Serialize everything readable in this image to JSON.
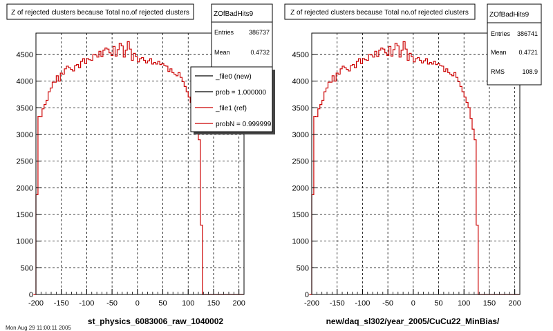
{
  "colors": {
    "reference_line": "#cc0000",
    "new_line": "#000000",
    "grid": "#000000",
    "background": "#ffffff"
  },
  "footer_text": "Mon Aug 29 11:00:11 2005",
  "chart_data": [
    {
      "type": "line",
      "title": "Z of rejected clusters  because Total no.of rejected clusters",
      "xlabel": "st_physics_6083006_raw_1040002",
      "ylabel": "",
      "xlim": [
        -200,
        210
      ],
      "ylim": [
        0,
        4900
      ],
      "xticks": [
        -200,
        -150,
        -100,
        -50,
        0,
        50,
        100,
        150,
        200
      ],
      "xtick_labels": [
        "-200",
        "-150",
        "-100",
        "-50",
        "0",
        "50",
        "100",
        "150",
        "200"
      ],
      "yticks": [
        0,
        500,
        1000,
        1500,
        2000,
        2500,
        3000,
        3500,
        4000,
        4500
      ],
      "ytick_labels": [
        "0",
        "500",
        "1000",
        "1500",
        "2000",
        "2500",
        "3000",
        "3500",
        "4000",
        "4500"
      ],
      "grid": true,
      "stats": {
        "name": "ZOfBadHits9",
        "rows": [
          {
            "label": "Entries",
            "value": "386737"
          },
          {
            "label": "Mean",
            "value": "0.4732"
          }
        ]
      },
      "legend": {
        "placement": "top-right",
        "entries": [
          {
            "label": "_file0 (new)",
            "color": "#000000"
          },
          {
            "label": "prob = 1.000000",
            "color": "#000000"
          },
          {
            "label": "_file1 (ref)",
            "color": "#cc0000"
          },
          {
            "label": "probN = 0.999999",
            "color": "#cc0000"
          }
        ]
      },
      "series": [
        {
          "x": [
            -205,
            -200,
            -196,
            -192,
            -188,
            -184,
            -180,
            -176,
            -172,
            -168,
            -164,
            -160,
            -156,
            -152,
            -148,
            -144,
            -140,
            -136,
            -132,
            -128,
            -124,
            -120,
            -116,
            -112,
            -108,
            -104,
            -100,
            -96,
            -92,
            -88,
            -84,
            -80,
            -76,
            -72,
            -68,
            -64,
            -60,
            -56,
            -52,
            -48,
            -44,
            -40,
            -36,
            -32,
            -28,
            -24,
            -20,
            -16,
            -12,
            -8,
            -4,
            0,
            4,
            8,
            12,
            16,
            20,
            24,
            28,
            32,
            36,
            40,
            44,
            48,
            52,
            56,
            60,
            64,
            68,
            72,
            76,
            80,
            84,
            88,
            92,
            96,
            100,
            104,
            108,
            112,
            116,
            120,
            124,
            128,
            132,
            136,
            140,
            144,
            148,
            152,
            156,
            160,
            164,
            168,
            172,
            176,
            180,
            184,
            188,
            192,
            196,
            200,
            204
          ],
          "values": [
            0,
            1870,
            3340,
            3330,
            3480,
            3560,
            3640,
            3800,
            3870,
            3980,
            3980,
            4100,
            4000,
            4150,
            4130,
            4230,
            4280,
            4250,
            4220,
            4190,
            4290,
            4310,
            4250,
            4370,
            4420,
            4330,
            4420,
            4400,
            4390,
            4500,
            4490,
            4450,
            4560,
            4460,
            4580,
            4620,
            4600,
            4530,
            4480,
            4650,
            4470,
            4590,
            4710,
            4660,
            4450,
            4580,
            4740,
            4600,
            4390,
            4520,
            4460,
            4360,
            4420,
            4440,
            4390,
            4340,
            4380,
            4420,
            4320,
            4350,
            4320,
            4370,
            4310,
            4330,
            4290,
            4280,
            4180,
            4230,
            4160,
            4130,
            4100,
            4160,
            4070,
            3990,
            3900,
            3800,
            3700,
            3600,
            3500,
            3300,
            3100,
            2900,
            1300,
            0,
            0,
            0,
            0,
            0,
            0,
            0,
            0,
            0,
            0,
            0,
            0,
            0,
            0,
            0,
            0,
            0,
            0,
            0,
            0
          ]
        }
      ]
    },
    {
      "type": "line",
      "title": "Z of rejected clusters  because Total no.of rejected clusters",
      "xlabel": "new/daq_sl302/year_2005/CuCu22_MinBias/",
      "ylabel": "",
      "xlim": [
        -200,
        210
      ],
      "ylim": [
        0,
        4900
      ],
      "xticks": [
        -200,
        -150,
        -100,
        -50,
        0,
        50,
        100,
        150,
        200
      ],
      "xtick_labels": [
        "-200",
        "-150",
        "-100",
        "-50",
        "0",
        "50",
        "100",
        "150",
        "200"
      ],
      "yticks": [
        0,
        500,
        1000,
        1500,
        2000,
        2500,
        3000,
        3500,
        4000,
        4500
      ],
      "ytick_labels": [
        "0",
        "500",
        "1000",
        "1500",
        "2000",
        "2500",
        "3000",
        "3500",
        "4000",
        "4500"
      ],
      "grid": true,
      "stats": {
        "name": "ZOfBadHits9",
        "rows": [
          {
            "label": "Entries",
            "value": "386741"
          },
          {
            "label": "Mean",
            "value": "0.4721"
          },
          {
            "label": "RMS",
            "value": "108.9"
          }
        ]
      },
      "series": [
        {
          "x": [
            -205,
            -200,
            -196,
            -192,
            -188,
            -184,
            -180,
            -176,
            -172,
            -168,
            -164,
            -160,
            -156,
            -152,
            -148,
            -144,
            -140,
            -136,
            -132,
            -128,
            -124,
            -120,
            -116,
            -112,
            -108,
            -104,
            -100,
            -96,
            -92,
            -88,
            -84,
            -80,
            -76,
            -72,
            -68,
            -64,
            -60,
            -56,
            -52,
            -48,
            -44,
            -40,
            -36,
            -32,
            -28,
            -24,
            -20,
            -16,
            -12,
            -8,
            -4,
            0,
            4,
            8,
            12,
            16,
            20,
            24,
            28,
            32,
            36,
            40,
            44,
            48,
            52,
            56,
            60,
            64,
            68,
            72,
            76,
            80,
            84,
            88,
            92,
            96,
            100,
            104,
            108,
            112,
            116,
            120,
            124,
            128,
            132,
            136,
            140,
            144,
            148,
            152,
            156,
            160,
            164,
            168,
            172,
            176,
            180,
            184,
            188,
            192,
            196,
            200,
            204
          ],
          "values": [
            0,
            1870,
            3340,
            3330,
            3480,
            3560,
            3640,
            3800,
            3870,
            3980,
            3980,
            4100,
            4000,
            4150,
            4130,
            4230,
            4280,
            4250,
            4220,
            4190,
            4290,
            4310,
            4250,
            4370,
            4420,
            4330,
            4420,
            4400,
            4390,
            4500,
            4490,
            4450,
            4560,
            4460,
            4580,
            4620,
            4600,
            4530,
            4480,
            4650,
            4470,
            4590,
            4710,
            4660,
            4450,
            4580,
            4740,
            4600,
            4390,
            4520,
            4460,
            4360,
            4420,
            4440,
            4390,
            4340,
            4380,
            4420,
            4320,
            4350,
            4320,
            4370,
            4310,
            4330,
            4290,
            4280,
            4180,
            4230,
            4160,
            4130,
            4100,
            4160,
            4070,
            3990,
            3900,
            3800,
            3700,
            3600,
            3500,
            3300,
            3100,
            2900,
            1300,
            0,
            0,
            0,
            0,
            0,
            0,
            0,
            0,
            0,
            0,
            0,
            0,
            0,
            0,
            0,
            0,
            0,
            0,
            0,
            0
          ]
        }
      ]
    }
  ]
}
